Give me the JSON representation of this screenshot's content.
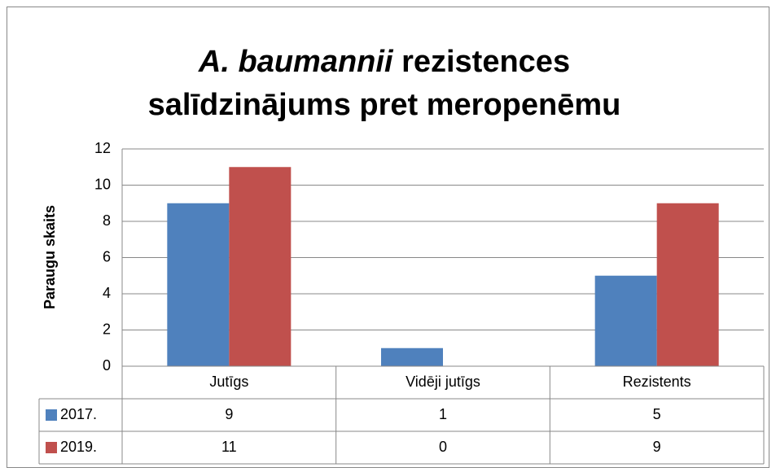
{
  "chart_data": {
    "type": "bar",
    "title": [
      "A. baumannii",
      "rezistences",
      "salīdzinājums pret meropenēmu"
    ],
    "y_label": "Paraugu skaits",
    "categories": [
      "Jutīgs",
      "Vidēji jutīgs",
      "Rezistents"
    ],
    "series": [
      {
        "name": "2017.",
        "color": "#4f81bd",
        "values": [
          9,
          1,
          5
        ]
      },
      {
        "name": "2019.",
        "color": "#c0504d",
        "values": [
          11,
          0,
          9
        ]
      }
    ],
    "ylim": [
      0,
      12
    ],
    "yticks": [
      0,
      2,
      4,
      6,
      8,
      10,
      12
    ],
    "grid": true,
    "data_table": true
  }
}
